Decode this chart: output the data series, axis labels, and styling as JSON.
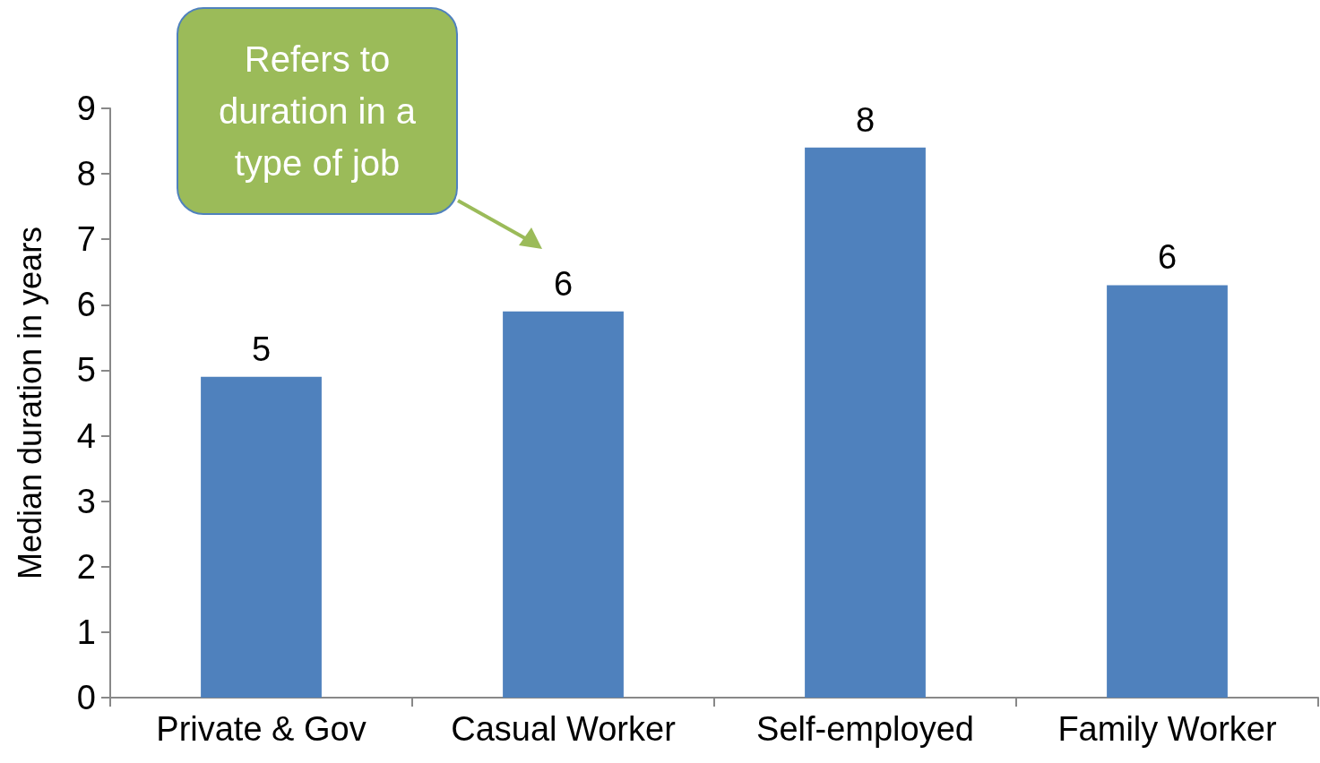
{
  "chart_data": {
    "type": "bar",
    "ylabel": "Median duration in years",
    "categories": [
      "Private & Gov",
      "Casual Worker",
      "Self-employed",
      "Family Worker"
    ],
    "values": [
      4.9,
      5.9,
      8.4,
      6.3
    ],
    "value_labels": [
      "5",
      "6",
      "8",
      "6"
    ],
    "color": "#4f81bd",
    "ylim": [
      0,
      9
    ],
    "yticks": [
      0,
      1,
      2,
      3,
      4,
      5,
      6,
      7,
      8,
      9
    ],
    "grid": false,
    "annotations": [
      "Refers to duration in a type of job"
    ]
  }
}
